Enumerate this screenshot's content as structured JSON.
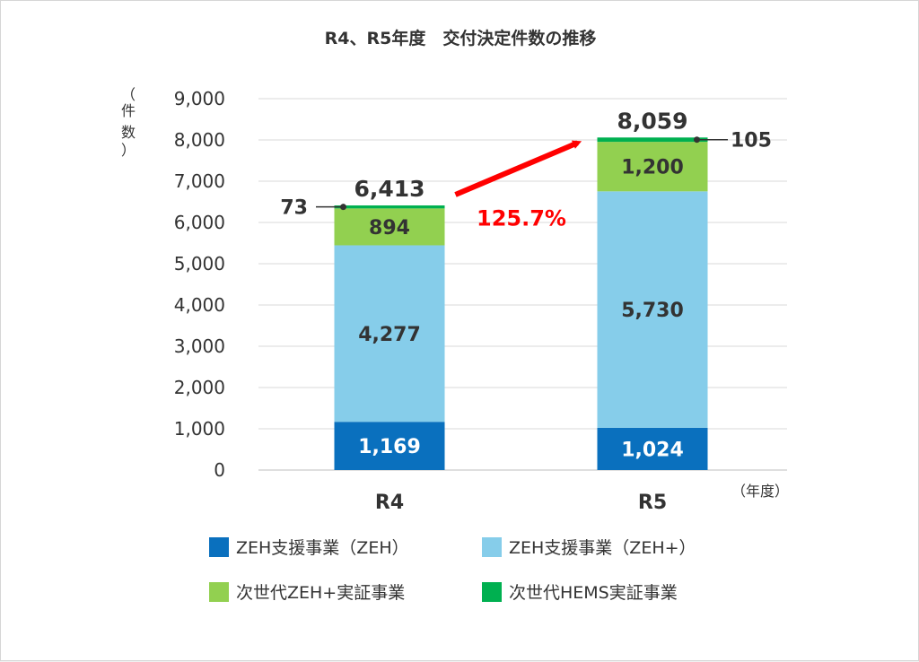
{
  "chart_data": {
    "type": "bar",
    "stacked": true,
    "title": "R4、R5年度　交付決定件数の推移",
    "ylabel": "（件数）",
    "xlabel": "（年度）",
    "categories": [
      "R4",
      "R5"
    ],
    "ylim": [
      0,
      9000
    ],
    "y_ticks": [
      0,
      1000,
      2000,
      3000,
      4000,
      5000,
      6000,
      7000,
      8000,
      9000
    ],
    "y_tick_labels": [
      "0",
      "1,000",
      "2,000",
      "3,000",
      "4,000",
      "5,000",
      "6,000",
      "7,000",
      "8,000",
      "9,000"
    ],
    "grid": true,
    "legend_position": "bottom",
    "series": [
      {
        "name": "ZEH支援事業（ZEH）",
        "color": "#0a70be",
        "values": [
          1169,
          1024
        ],
        "labels": [
          "1,169",
          "1,024"
        ]
      },
      {
        "name": "ZEH支援事業（ZEH+）",
        "color": "#86cdea",
        "values": [
          4277,
          5730
        ],
        "labels": [
          "4,277",
          "5,730"
        ]
      },
      {
        "name": "次世代ZEH+実証事業",
        "color": "#92d050",
        "values": [
          894,
          1200
        ],
        "labels": [
          "894",
          "1,200"
        ]
      },
      {
        "name": "次世代HEMS実証事業",
        "color": "#00b050",
        "values": [
          73,
          105
        ],
        "labels": [
          "73",
          "105"
        ]
      }
    ],
    "totals": [
      6413,
      8059
    ],
    "total_labels": [
      "6,413",
      "8,059"
    ],
    "growth_annotation": "125.7%",
    "growth_color": "#ff0000"
  }
}
